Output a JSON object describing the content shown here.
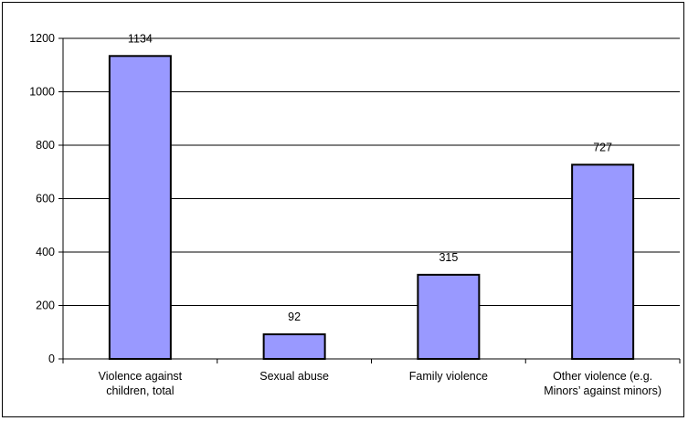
{
  "chart_data": {
    "type": "bar",
    "categories": [
      [
        "Violence against",
        "children, total"
      ],
      [
        "Sexual abuse"
      ],
      [
        "Family violence"
      ],
      [
        "Other violence (e.g.",
        "Minors’ against minors)"
      ]
    ],
    "values": [
      1134,
      92,
      315,
      727
    ],
    "data_labels": [
      "1134",
      "92",
      "315",
      "727"
    ],
    "y_ticks": [
      "0",
      "200",
      "400",
      "600",
      "800",
      "1000",
      "1200"
    ],
    "ylim": [
      0,
      1200
    ],
    "grid": true,
    "legend": "none",
    "colors": {
      "bar_fill": "#9999ff",
      "bar_stroke": "#000000",
      "grid": "#000000",
      "axis": "#000000"
    }
  }
}
